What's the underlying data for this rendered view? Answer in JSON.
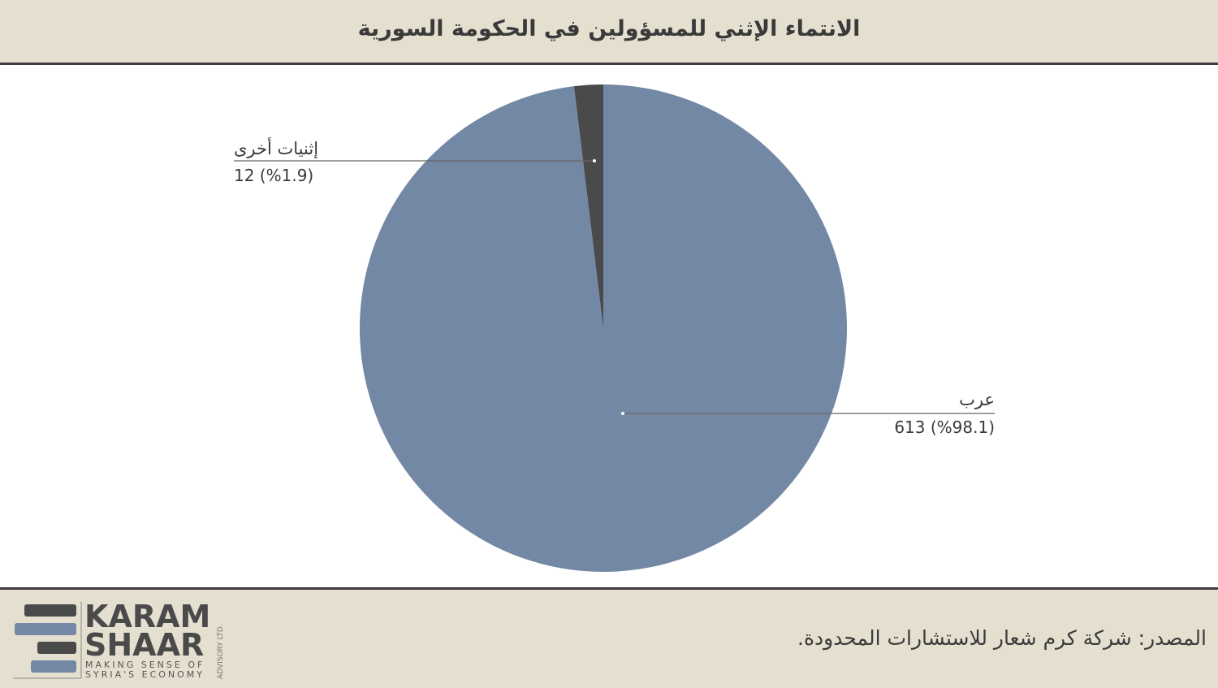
{
  "header": {
    "title": "الانتماء الإثني للمسؤولين في الحكومة السورية"
  },
  "chart_data": {
    "type": "pie",
    "title": "الانتماء الإثني للمسؤولين في الحكومة السورية",
    "slices": [
      {
        "name": "عرب",
        "value": 613,
        "percent_label": "613 (%98.1)",
        "color": "#7388a5"
      },
      {
        "name": "إثنيات أخرى",
        "value": 12,
        "percent_label": "12 (%1.9)",
        "color": "#4a4a4a"
      }
    ]
  },
  "footer": {
    "source": "المصدر: شركة كرم شعار للاستشارات المحدودة.",
    "logo": {
      "line1": "KARAM",
      "line2": "SHAAR",
      "tagline1": "MAKING SENSE OF",
      "tagline2": "SYRIA'S ECONOMY",
      "side": "ADVISORY LTD."
    }
  }
}
